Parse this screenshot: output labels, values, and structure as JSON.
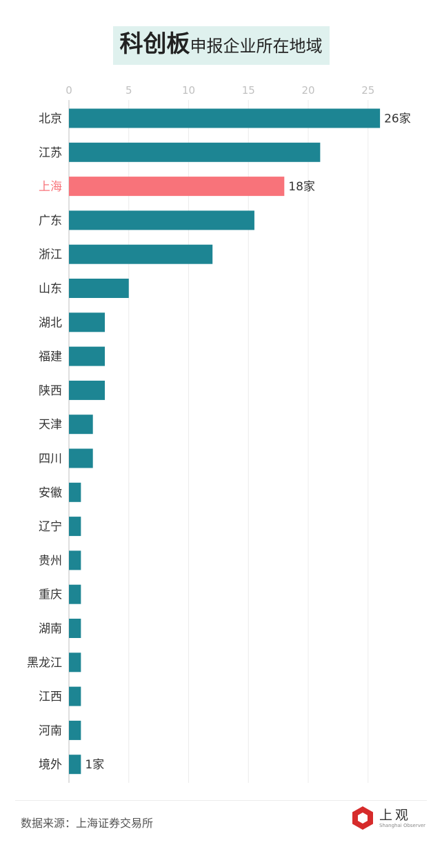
{
  "title": {
    "main": "科创板",
    "sub": "申报企业所在地域"
  },
  "source": "数据来源：上海证券交易所",
  "logo": {
    "cn": "上观",
    "en": "Shanghai Observer"
  },
  "colors": {
    "bar": "#1d8593",
    "highlight": "#f8737a",
    "title_bg": "#dff1ee",
    "axis_tick": "#c0c0c0",
    "grid": "#ececec"
  },
  "chart_data": {
    "type": "bar",
    "orientation": "horizontal",
    "categories": [
      "北京",
      "江苏",
      "上海",
      "广东",
      "浙江",
      "山东",
      "湖北",
      "福建",
      "陕西",
      "天津",
      "四川",
      "安徽",
      "辽宁",
      "贵州",
      "重庆",
      "湖南",
      "黑龙江",
      "江西",
      "河南",
      "境外"
    ],
    "values": [
      26,
      21,
      18,
      15.5,
      12,
      5,
      3,
      3,
      3,
      2,
      2,
      1,
      1,
      1,
      1,
      1,
      1,
      1,
      1,
      1
    ],
    "highlight": "上海",
    "x_ticks": [
      0,
      5,
      10,
      15,
      20,
      25
    ],
    "xlim": [
      0,
      26
    ],
    "grid": true,
    "data_labels": {
      "北京": "26家",
      "上海": "18家",
      "境外": "1家"
    }
  }
}
